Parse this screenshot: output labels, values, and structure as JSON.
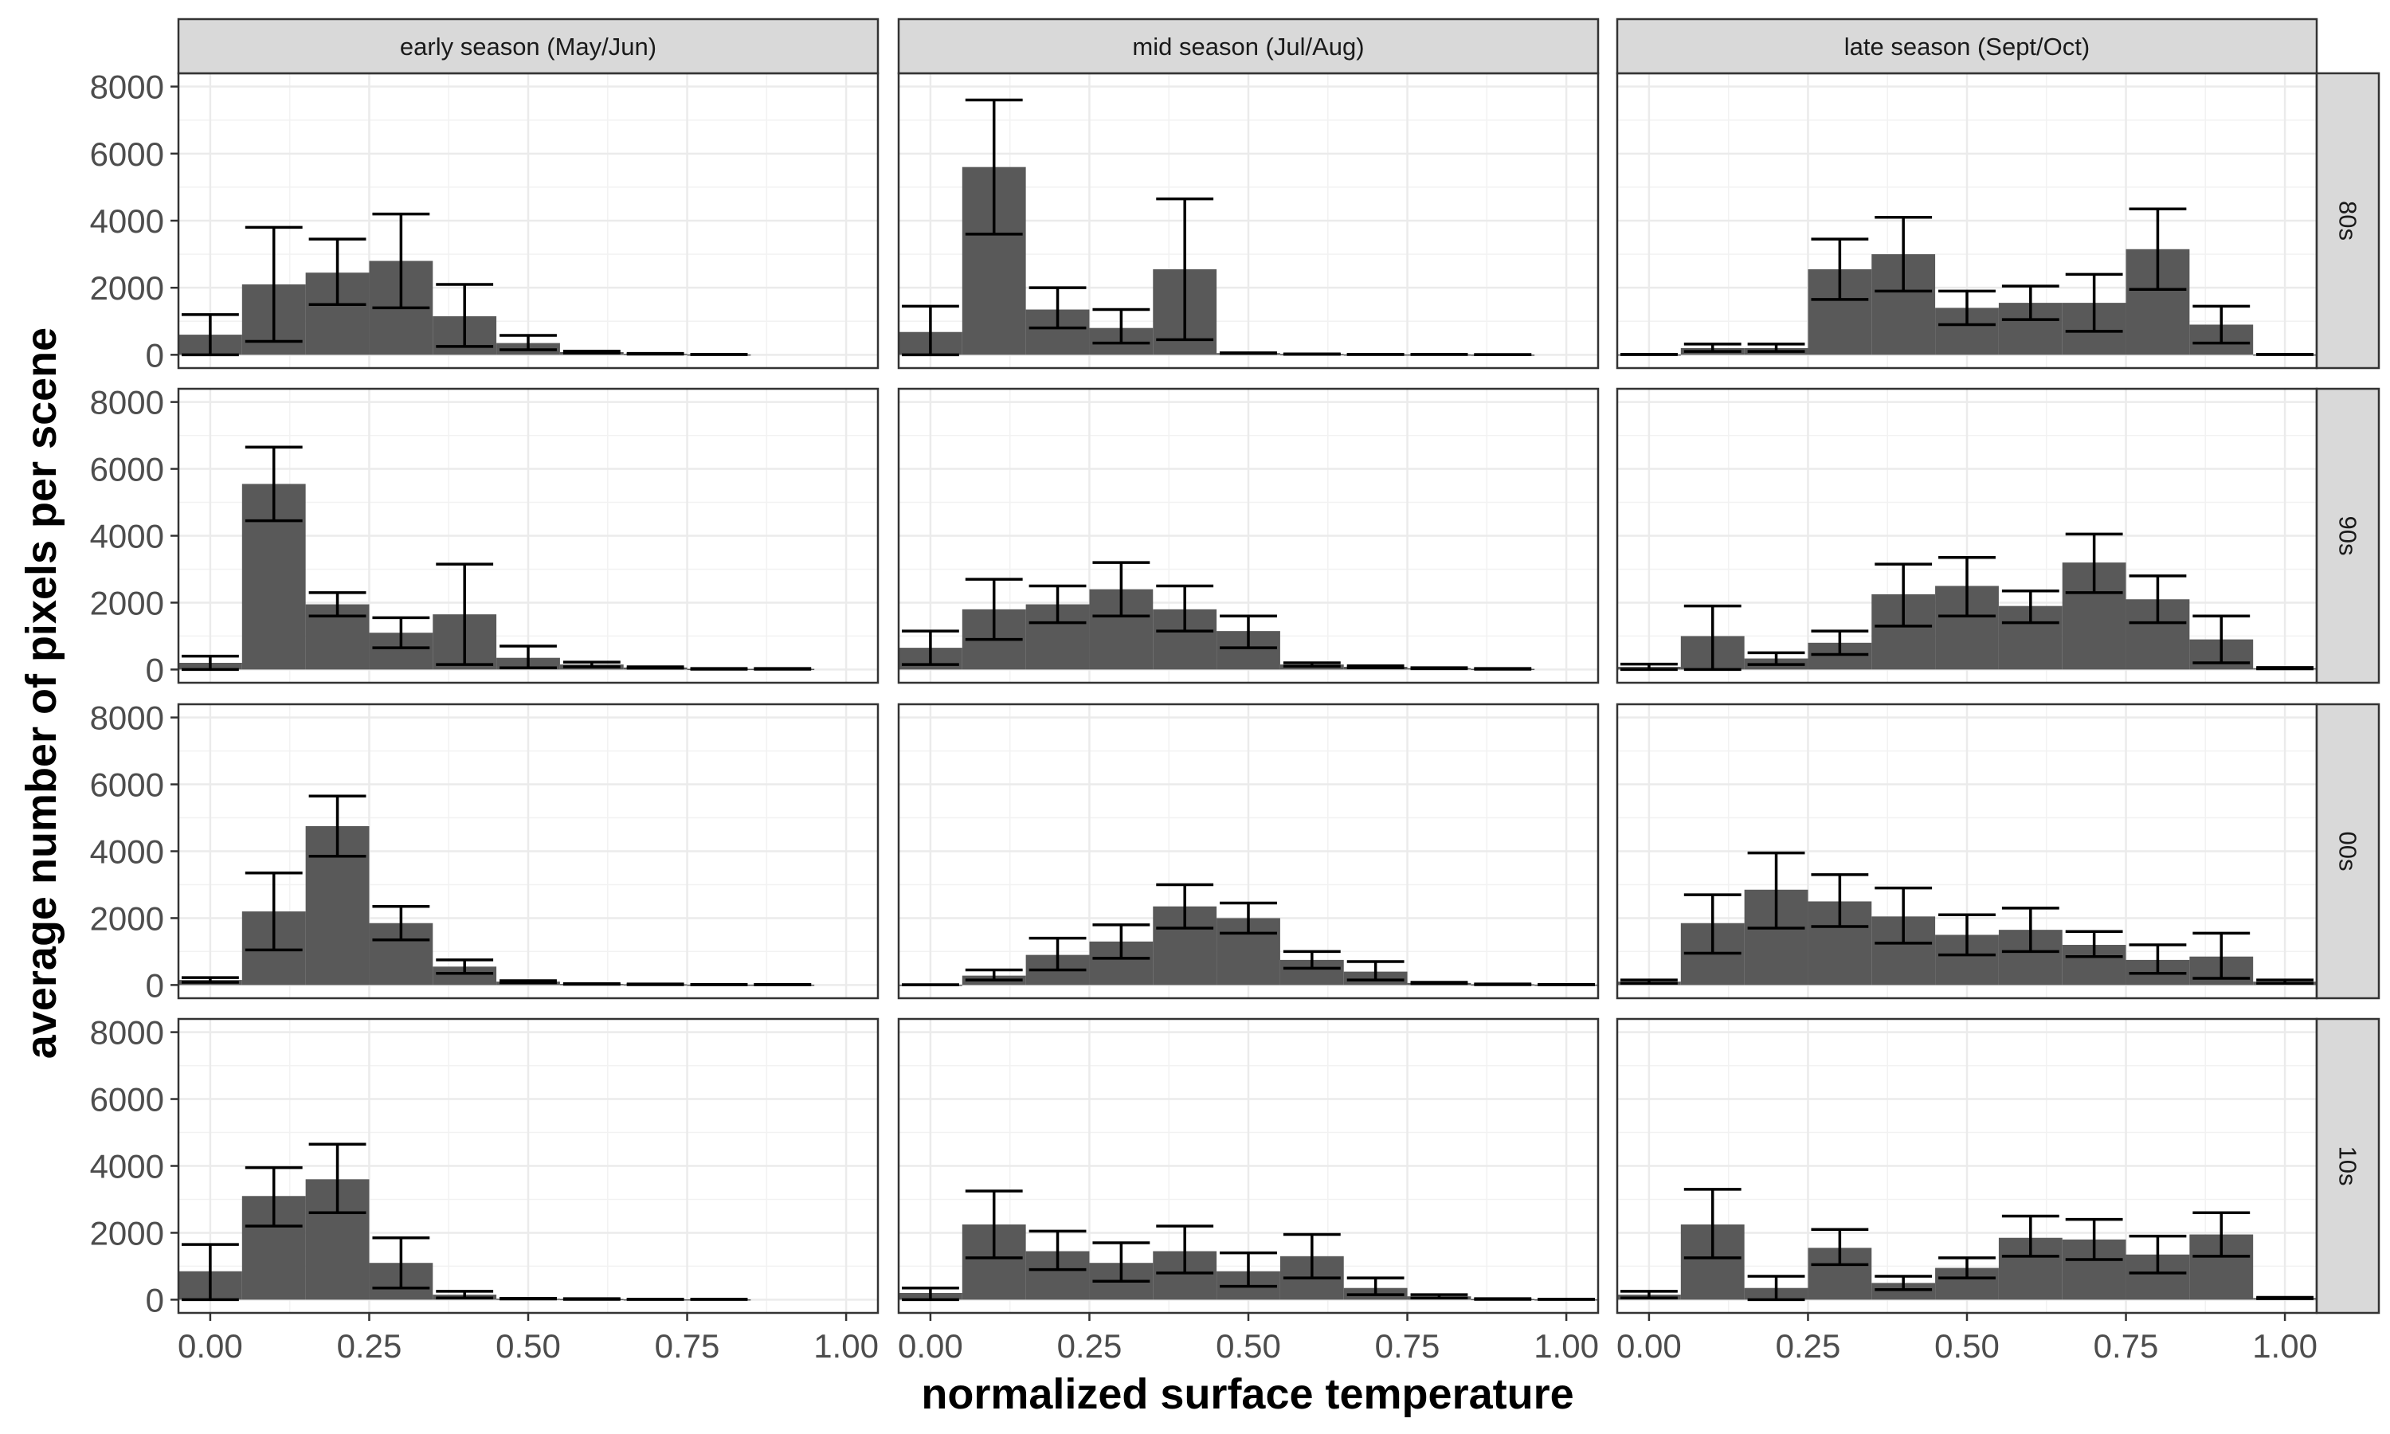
{
  "chart_data": {
    "type": "bar",
    "facet_layout": "grid",
    "xlabel": "normalized surface temperature",
    "ylabel": "average number of pixels per scene",
    "column_facets": [
      "early season (May/Jun)",
      "mid season (Jul/Aug)",
      "late season (Sept/Oct)"
    ],
    "row_facets": [
      "80s",
      "90s",
      "00s",
      "10s"
    ],
    "x": [
      0.0,
      0.1,
      0.2,
      0.3,
      0.4,
      0.5,
      0.6,
      0.7,
      0.8,
      0.9,
      1.0
    ],
    "bin_width": 0.1,
    "xlim": [
      -0.05,
      1.05
    ],
    "ylim": [
      0,
      8000
    ],
    "x_ticks": [
      0.0,
      0.25,
      0.5,
      0.75,
      1.0
    ],
    "x_tick_labels": [
      "0.00",
      "0.25",
      "0.50",
      "0.75",
      "1.00"
    ],
    "y_ticks": [
      0,
      2000,
      4000,
      6000,
      8000
    ],
    "y_tick_labels": [
      "0",
      "2000",
      "4000",
      "6000",
      "8000"
    ],
    "grid": true,
    "bar_color": "#595959",
    "errorbar_color": "#000000",
    "panels": [
      {
        "row": "80s",
        "col": "early season (May/Jun)",
        "values": [
          600,
          2100,
          2450,
          2800,
          1150,
          350,
          80,
          30,
          10,
          null,
          null
        ],
        "err_low": [
          0,
          400,
          1500,
          1400,
          250,
          150,
          50,
          20,
          5,
          null,
          null
        ],
        "err_high": [
          1200,
          3800,
          3450,
          4200,
          2100,
          580,
          110,
          40,
          15,
          null,
          null
        ]
      },
      {
        "row": "80s",
        "col": "mid season (Jul/Aug)",
        "values": [
          680,
          5600,
          1350,
          800,
          2550,
          50,
          20,
          10,
          10,
          5,
          null
        ],
        "err_low": [
          0,
          3600,
          800,
          350,
          450,
          40,
          15,
          8,
          8,
          3,
          null
        ],
        "err_high": [
          1450,
          7600,
          2000,
          1350,
          4650,
          60,
          25,
          12,
          12,
          7,
          null
        ]
      },
      {
        "row": "80s",
        "col": "late season (Sept/Oct)",
        "values": [
          10,
          200,
          200,
          2550,
          3000,
          1400,
          1550,
          1550,
          3150,
          900,
          10
        ],
        "err_low": [
          5,
          100,
          100,
          1650,
          1900,
          900,
          1050,
          700,
          1950,
          350,
          5
        ],
        "err_high": [
          15,
          320,
          320,
          3450,
          4100,
          1900,
          2050,
          2400,
          4350,
          1450,
          15
        ]
      },
      {
        "row": "90s",
        "col": "early season (May/Jun)",
        "values": [
          200,
          5550,
          1950,
          1100,
          1650,
          350,
          150,
          60,
          20,
          20,
          null
        ],
        "err_low": [
          0,
          4450,
          1600,
          650,
          150,
          50,
          80,
          40,
          10,
          10,
          null
        ],
        "err_high": [
          400,
          6650,
          2300,
          1550,
          3150,
          700,
          220,
          80,
          30,
          30,
          null
        ]
      },
      {
        "row": "90s",
        "col": "mid season (Jul/Aug)",
        "values": [
          650,
          1800,
          1950,
          2400,
          1800,
          1150,
          150,
          80,
          40,
          20,
          null
        ],
        "err_low": [
          150,
          900,
          1400,
          1600,
          1150,
          650,
          100,
          50,
          25,
          10,
          null
        ],
        "err_high": [
          1150,
          2700,
          2500,
          3200,
          2500,
          1600,
          200,
          110,
          55,
          30,
          null
        ]
      },
      {
        "row": "90s",
        "col": "late season (Sept/Oct)",
        "values": [
          80,
          1000,
          330,
          800,
          2250,
          2500,
          1900,
          3200,
          2100,
          900,
          40
        ],
        "err_low": [
          0,
          0,
          150,
          450,
          1300,
          1600,
          1400,
          2300,
          1400,
          200,
          20
        ],
        "err_high": [
          160,
          1900,
          500,
          1150,
          3150,
          3350,
          2350,
          4050,
          2800,
          1600,
          60
        ]
      },
      {
        "row": "00s",
        "col": "early season (May/Jun)",
        "values": [
          150,
          2200,
          4750,
          1850,
          550,
          100,
          30,
          20,
          10,
          10,
          null
        ],
        "err_low": [
          80,
          1050,
          3850,
          1350,
          350,
          70,
          20,
          10,
          5,
          5,
          null
        ],
        "err_high": [
          220,
          3350,
          5650,
          2350,
          750,
          130,
          40,
          30,
          15,
          15,
          null
        ]
      },
      {
        "row": "00s",
        "col": "mid season (Jul/Aug)",
        "values": [
          5,
          280,
          900,
          1300,
          2350,
          2000,
          750,
          400,
          60,
          20,
          10
        ],
        "err_low": [
          3,
          150,
          450,
          800,
          1700,
          1550,
          500,
          150,
          40,
          10,
          5
        ],
        "err_high": [
          8,
          450,
          1400,
          1800,
          3000,
          2450,
          1000,
          700,
          80,
          30,
          15
        ]
      },
      {
        "row": "00s",
        "col": "late season (Sept/Oct)",
        "values": [
          100,
          1850,
          2850,
          2500,
          2050,
          1500,
          1650,
          1200,
          750,
          850,
          100
        ],
        "err_low": [
          50,
          950,
          1700,
          1750,
          1250,
          900,
          1000,
          850,
          350,
          200,
          50
        ],
        "err_high": [
          150,
          2700,
          3950,
          3300,
          2900,
          2100,
          2300,
          1600,
          1200,
          1550,
          150
        ]
      },
      {
        "row": "10s",
        "col": "early season (May/Jun)",
        "values": [
          850,
          3100,
          3600,
          1100,
          150,
          30,
          20,
          10,
          10,
          null,
          null
        ],
        "err_low": [
          0,
          2200,
          2600,
          350,
          50,
          20,
          10,
          5,
          5,
          null,
          null
        ],
        "err_high": [
          1650,
          3950,
          4650,
          1850,
          250,
          40,
          30,
          15,
          15,
          null,
          null
        ]
      },
      {
        "row": "10s",
        "col": "mid season (Jul/Aug)",
        "values": [
          200,
          2250,
          1450,
          1100,
          1450,
          850,
          1300,
          350,
          100,
          20,
          10
        ],
        "err_low": [
          0,
          1250,
          900,
          550,
          800,
          400,
          650,
          150,
          50,
          10,
          5
        ],
        "err_high": [
          350,
          3250,
          2050,
          1700,
          2200,
          1400,
          1950,
          650,
          150,
          30,
          15
        ]
      },
      {
        "row": "10s",
        "col": "late season (Sept/Oct)",
        "values": [
          150,
          2250,
          350,
          1550,
          500,
          950,
          1850,
          1800,
          1350,
          1950,
          50
        ],
        "err_low": [
          50,
          1250,
          0,
          1050,
          300,
          650,
          1300,
          1200,
          800,
          1300,
          30
        ],
        "err_high": [
          250,
          3300,
          700,
          2100,
          700,
          1250,
          2500,
          2400,
          1900,
          2600,
          70
        ]
      }
    ]
  }
}
